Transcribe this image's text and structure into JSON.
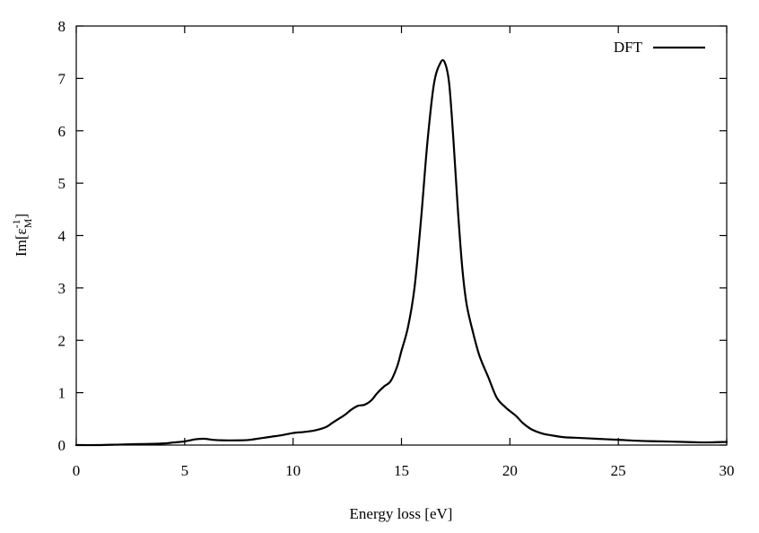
{
  "chart_data": {
    "type": "line",
    "title": "",
    "xlabel": "Energy loss [eV]",
    "ylabel": {
      "base": "Im[ε",
      "sup": "-1",
      "sub": "M",
      "close": "]"
    },
    "xlim": [
      0,
      30
    ],
    "ylim": [
      0,
      8
    ],
    "xticks": [
      "0",
      "5",
      "10",
      "15",
      "20",
      "25",
      "30"
    ],
    "yticks": [
      "0",
      "1",
      "2",
      "3",
      "4",
      "5",
      "6",
      "7",
      "8"
    ],
    "grid": false,
    "legend": {
      "position": "top-right",
      "entries": [
        "DFT"
      ]
    },
    "series": [
      {
        "name": "DFT",
        "color": "#000000",
        "x": [
          0,
          1,
          2,
          3,
          4,
          4.5,
          5,
          5.5,
          5.9,
          6.3,
          6.8,
          7.5,
          8.0,
          8.5,
          9.0,
          9.5,
          10.0,
          10.5,
          11.0,
          11.5,
          11.8,
          12.1,
          12.4,
          12.7,
          13.0,
          13.3,
          13.6,
          13.9,
          14.2,
          14.5,
          14.8,
          15.0,
          15.3,
          15.6,
          15.9,
          16.2,
          16.5,
          16.8,
          17.0,
          17.2,
          17.4,
          17.6,
          17.8,
          18.0,
          18.3,
          18.6,
          19.0,
          19.4,
          19.8,
          20.0,
          20.3,
          20.6,
          21.0,
          21.5,
          22.0,
          22.5,
          23.0,
          24.0,
          25.0,
          26.0,
          27.0,
          28.0,
          29.0,
          30.0
        ],
        "y": [
          0,
          0,
          0.01,
          0.02,
          0.03,
          0.05,
          0.07,
          0.11,
          0.12,
          0.1,
          0.09,
          0.09,
          0.1,
          0.13,
          0.16,
          0.19,
          0.23,
          0.25,
          0.28,
          0.34,
          0.42,
          0.5,
          0.58,
          0.68,
          0.75,
          0.77,
          0.85,
          1.0,
          1.12,
          1.22,
          1.5,
          1.8,
          2.25,
          3.0,
          4.3,
          5.8,
          6.9,
          7.3,
          7.3,
          6.9,
          5.8,
          4.5,
          3.4,
          2.7,
          2.15,
          1.7,
          1.3,
          0.9,
          0.72,
          0.65,
          0.55,
          0.42,
          0.3,
          0.22,
          0.18,
          0.15,
          0.14,
          0.12,
          0.1,
          0.08,
          0.07,
          0.06,
          0.05,
          0.06
        ]
      }
    ]
  }
}
